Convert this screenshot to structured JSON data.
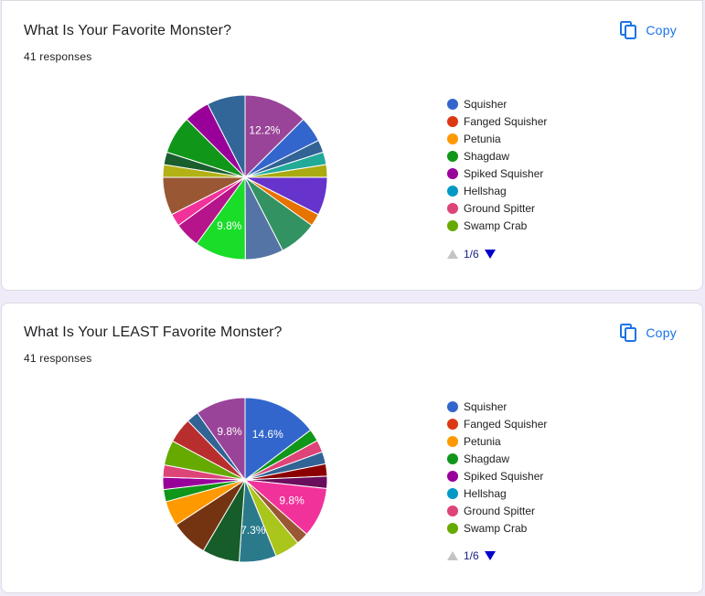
{
  "colors": {
    "background": "#f0ebf8",
    "accent": "#673ab7",
    "link": "#1a73e8",
    "pager": "#1a237e"
  },
  "legend_colors": [
    "#3366cc",
    "#dc3912",
    "#ff9900",
    "#109618",
    "#990099",
    "#0099c6",
    "#dd4477",
    "#66aa00"
  ],
  "cards": [
    {
      "title": "What Is Your Favorite Monster?",
      "responses": "41 responses",
      "copy_label": "Copy",
      "copy_icon": "copy-icon",
      "legend": [
        "Squisher",
        "Fanged Squisher",
        "Petunia",
        "Shagdaw",
        "Spiked Squisher",
        "Hellshag",
        "Ground Spitter",
        "Swamp Crab"
      ],
      "pager": {
        "text": "1/6",
        "prev_icon": "triangle-up-icon",
        "next_icon": "triangle-down-icon"
      }
    },
    {
      "title": "What Is Your LEAST Favorite Monster?",
      "responses": "41 responses",
      "copy_label": "Copy",
      "copy_icon": "copy-icon",
      "legend": [
        "Squisher",
        "Fanged Squisher",
        "Petunia",
        "Shagdaw",
        "Spiked Squisher",
        "Hellshag",
        "Ground Spitter",
        "Swamp Crab"
      ],
      "pager": {
        "text": "1/6",
        "prev_icon": "triangle-up-icon",
        "next_icon": "triangle-down-icon"
      }
    }
  ],
  "chart_data": [
    {
      "type": "pie",
      "title": "What Is Your Favorite Monster?",
      "slices": [
        {
          "value": 12.2,
          "color": "#994499",
          "label": "12.2%"
        },
        {
          "value": 4.9,
          "color": "#3366cc"
        },
        {
          "value": 2.4,
          "color": "#316395"
        },
        {
          "value": 2.4,
          "color": "#22aa99"
        },
        {
          "value": 2.4,
          "color": "#aaaa11"
        },
        {
          "value": 7.3,
          "color": "#6633cc"
        },
        {
          "value": 2.4,
          "color": "#e67300"
        },
        {
          "value": 7.3,
          "color": "#329262"
        },
        {
          "value": 7.3,
          "color": "#5574a6"
        },
        {
          "value": 9.8,
          "color": "#1add2a",
          "label": "9.8%"
        },
        {
          "value": 4.9,
          "color": "#b5148a"
        },
        {
          "value": 2.4,
          "color": "#f1329b"
        },
        {
          "value": 7.3,
          "color": "#995833"
        },
        {
          "value": 2.4,
          "color": "#b3b215"
        },
        {
          "value": 2.4,
          "color": "#1a5e2e"
        },
        {
          "value": 7.3,
          "color": "#109618"
        },
        {
          "value": 4.9,
          "color": "#990099"
        },
        {
          "value": 7.3,
          "color": "#326598"
        }
      ]
    },
    {
      "type": "pie",
      "title": "What Is Your LEAST Favorite Monster?",
      "slices": [
        {
          "value": 14.6,
          "color": "#3366cc",
          "label": "14.6%"
        },
        {
          "value": 2.4,
          "color": "#109618"
        },
        {
          "value": 2.4,
          "color": "#dd4477"
        },
        {
          "value": 2.4,
          "color": "#316395"
        },
        {
          "value": 2.4,
          "color": "#8b0000"
        },
        {
          "value": 2.4,
          "color": "#6a0d5c"
        },
        {
          "value": 9.8,
          "color": "#f1329b",
          "label": "9.8%"
        },
        {
          "value": 2.4,
          "color": "#995833"
        },
        {
          "value": 4.9,
          "color": "#aac51b"
        },
        {
          "value": 7.3,
          "color": "#2a7a8c",
          "label": "7.3%"
        },
        {
          "value": 7.3,
          "color": "#175d2a"
        },
        {
          "value": 7.3,
          "color": "#743411"
        },
        {
          "value": 4.9,
          "color": "#ff9900"
        },
        {
          "value": 2.4,
          "color": "#109618"
        },
        {
          "value": 2.4,
          "color": "#990099"
        },
        {
          "value": 2.4,
          "color": "#dd4477"
        },
        {
          "value": 4.9,
          "color": "#66aa00"
        },
        {
          "value": 4.9,
          "color": "#b82e2e"
        },
        {
          "value": 2.4,
          "color": "#316395"
        },
        {
          "value": 9.8,
          "color": "#994499",
          "label": "9.8%"
        }
      ]
    }
  ]
}
